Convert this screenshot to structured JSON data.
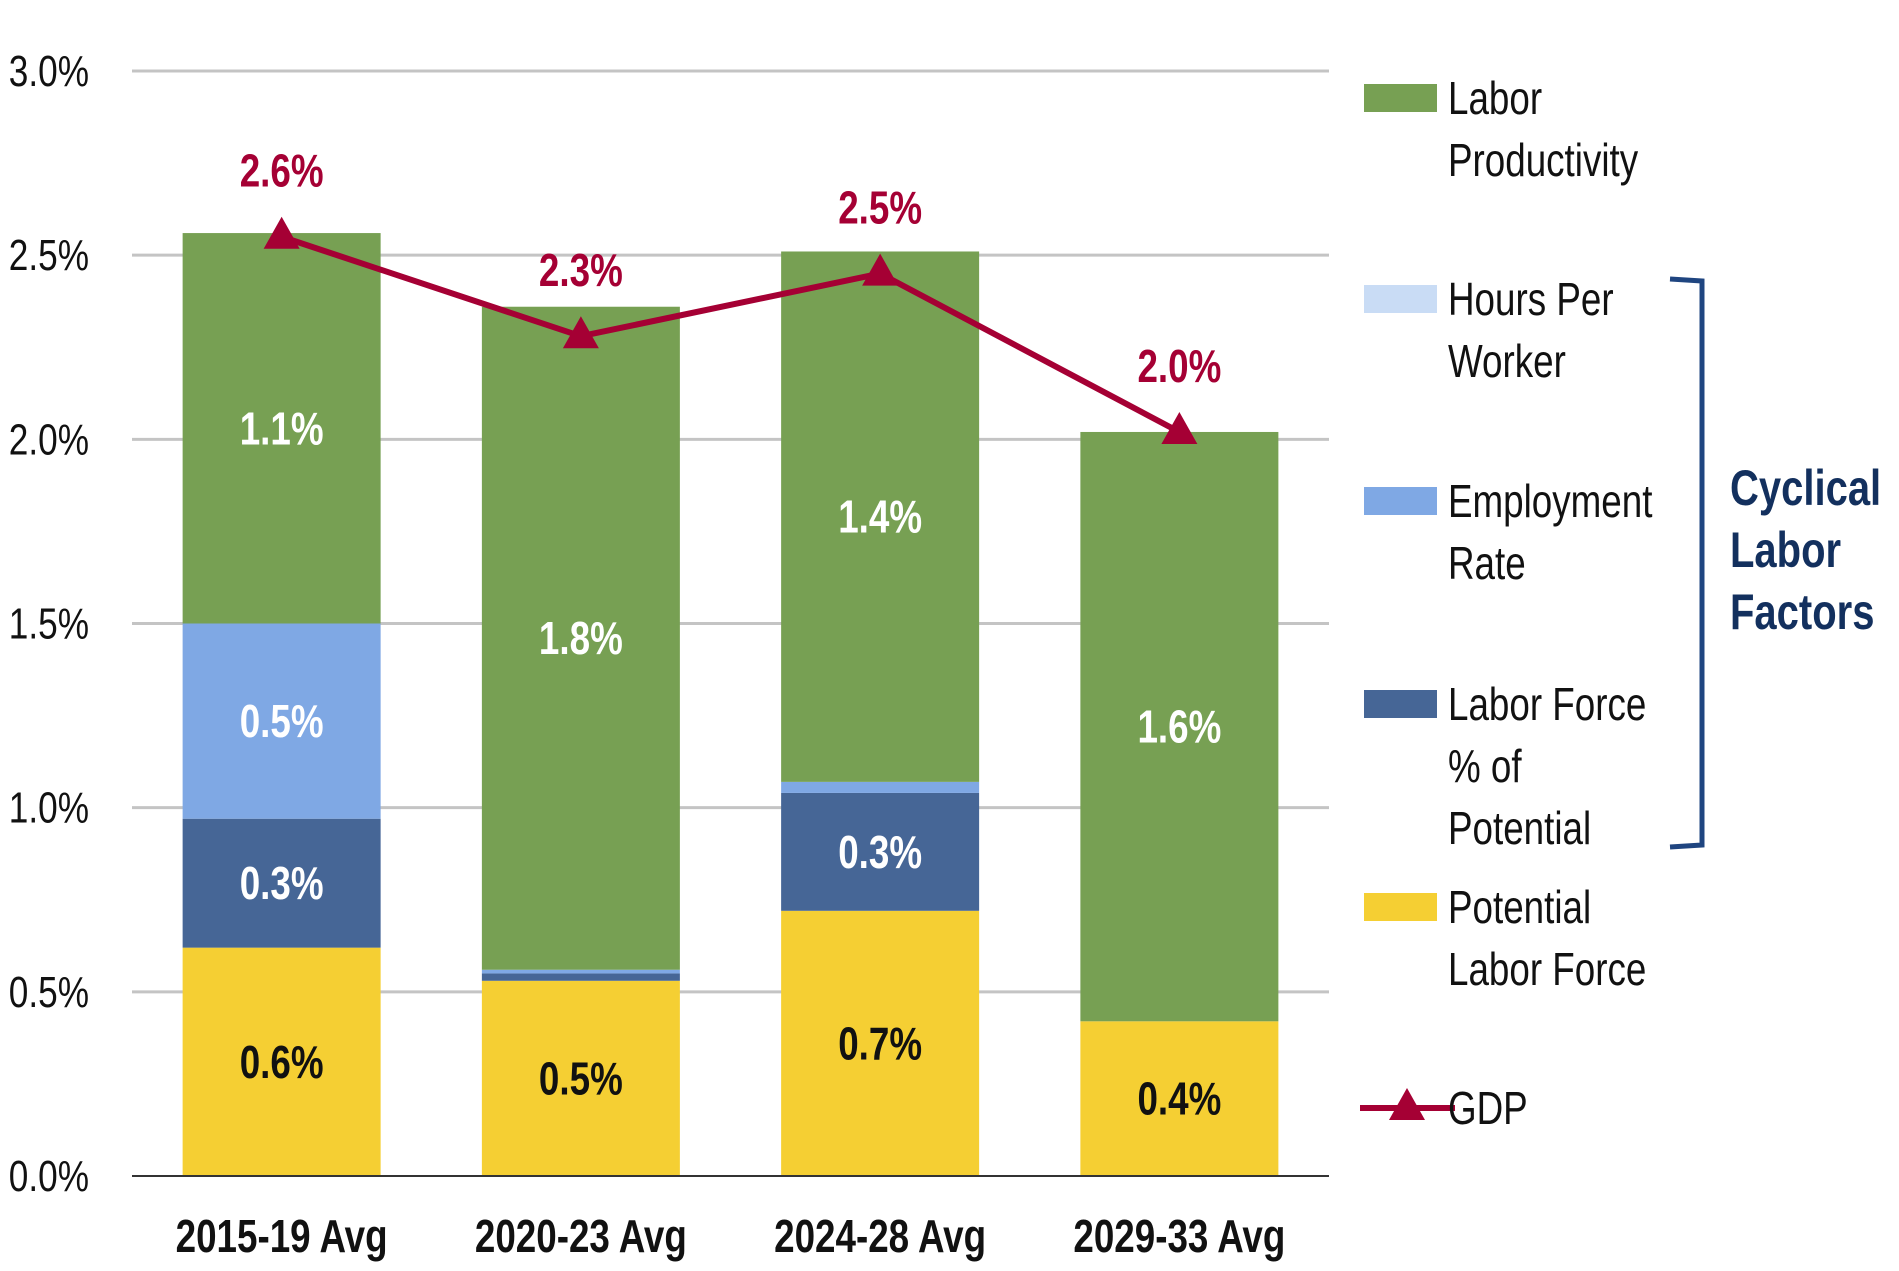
{
  "chart_data": {
    "type": "bar",
    "stacked": true,
    "categories": [
      "2015-19 Avg",
      "2020-23 Avg",
      "2024-28 Avg",
      "2029-33 Avg"
    ],
    "ylim": [
      0,
      3.0
    ],
    "yticks": [
      "0.0%",
      "0.5%",
      "1.0%",
      "1.5%",
      "2.0%",
      "2.5%",
      "3.0%"
    ],
    "ytick_values": [
      0,
      0.5,
      1.0,
      1.5,
      2.0,
      2.5,
      3.0
    ],
    "grid": true,
    "legend_position": "right",
    "series": [
      {
        "name": "Potential Labor Force",
        "color": "#f5cf33",
        "label_color": "#111111",
        "values": [
          0.62,
          0.53,
          0.72,
          0.42
        ],
        "labels": [
          "0.6%",
          "0.5%",
          "0.7%",
          "0.4%"
        ]
      },
      {
        "name": "Labor Force % of Potential",
        "color": "#466696",
        "label_color": "#ffffff",
        "values": [
          0.35,
          0.02,
          0.32,
          0.0
        ],
        "labels": [
          "0.3%",
          "",
          "0.3%",
          ""
        ]
      },
      {
        "name": "Employment Rate",
        "color": "#7fa8e4",
        "label_color": "#ffffff",
        "values": [
          0.53,
          0.01,
          0.03,
          0.0
        ],
        "labels": [
          "0.5%",
          "",
          "",
          ""
        ]
      },
      {
        "name": "Hours Per Worker",
        "color": "#c9dcf5",
        "label_color": "#ffffff",
        "values": [
          0.0,
          0.0,
          0.0,
          0.0
        ],
        "labels": [
          "",
          "",
          "",
          ""
        ]
      },
      {
        "name": "Labor Productivity",
        "color": "#77a053",
        "label_color": "#ffffff",
        "values": [
          1.06,
          1.8,
          1.44,
          1.6
        ],
        "labels": [
          "1.1%",
          "1.8%",
          "1.4%",
          "1.6%"
        ]
      }
    ],
    "line_series": {
      "name": "GDP",
      "color": "#a50034",
      "marker": "triangle",
      "values": [
        2.55,
        2.28,
        2.45,
        2.02
      ],
      "labels": [
        "2.6%",
        "2.3%",
        "2.5%",
        "2.0%"
      ]
    },
    "legend": [
      {
        "lines": [
          "Labor",
          "Productivity"
        ],
        "series": "Labor Productivity"
      },
      {
        "lines": [
          "Hours Per",
          "Worker"
        ],
        "series": "Hours Per Worker"
      },
      {
        "lines": [
          "Employment",
          "Rate"
        ],
        "series": "Employment Rate"
      },
      {
        "lines": [
          "Labor Force",
          "% of",
          "Potential"
        ],
        "series": "Labor Force % of Potential"
      },
      {
        "lines": [
          "Potential",
          "Labor Force"
        ],
        "series": "Potential Labor Force"
      },
      {
        "lines": [
          "GDP"
        ],
        "series": "GDP"
      }
    ],
    "annotation": {
      "lines": [
        "Cyclical",
        "Labor",
        "Factors"
      ],
      "color": "#13305e",
      "bracket_color": "#1f4580"
    }
  }
}
